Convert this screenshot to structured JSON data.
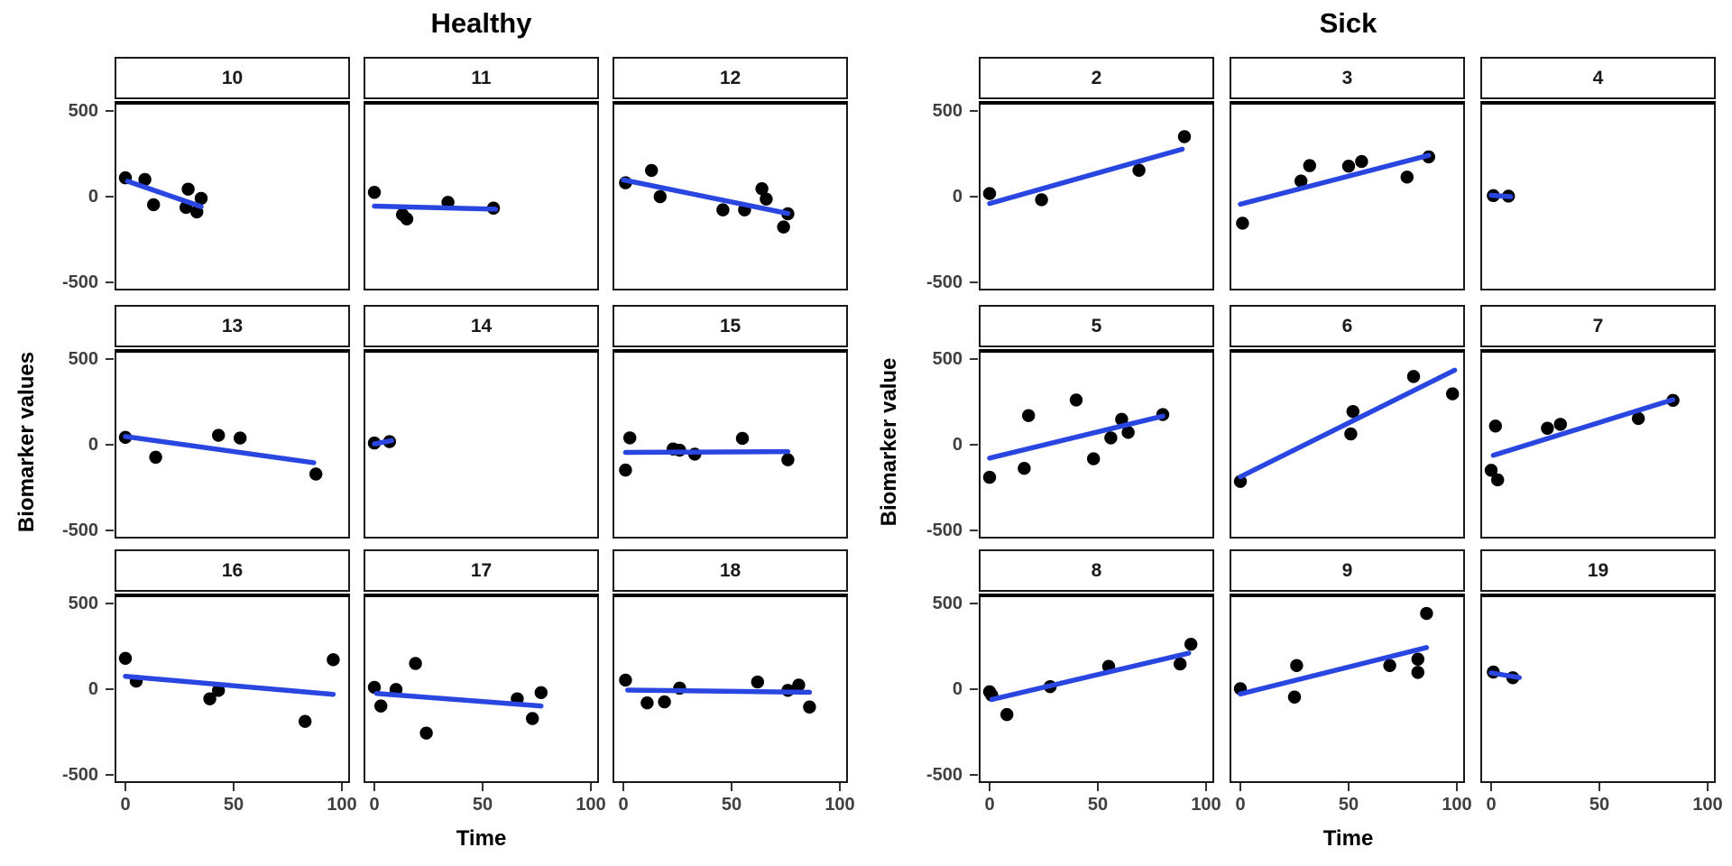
{
  "chart_data": {
    "type": "scatter",
    "description": "Two faceted scatter plots with linear trend lines (ggplot-style), individuals as facets",
    "x_ticks": [
      0,
      50,
      100
    ],
    "y_ticks": [
      500,
      0,
      -500
    ],
    "xlim": [
      -5,
      104
    ],
    "ylim": [
      -560,
      560
    ],
    "grid": false,
    "colors": {
      "trend_line": "#2946E1",
      "point": "#000000",
      "tick_text": "#404040",
      "border": "#1a1a1a"
    },
    "groups": [
      {
        "title": "Healthy",
        "ylabel": "Biomarker values",
        "xlabel": "Time",
        "facets": [
          {
            "label": "10",
            "points": [
              [
                0,
                110
              ],
              [
                9,
                100
              ],
              [
                13,
                -47
              ],
              [
                29,
                44
              ],
              [
                28,
                -63
              ],
              [
                33,
                -89
              ],
              [
                35,
                -10
              ]
            ],
            "line": [
              1,
              90,
              35,
              -58
            ]
          },
          {
            "label": "11",
            "points": [
              [
                0,
                25
              ],
              [
                13,
                -105
              ],
              [
                15,
                -130
              ],
              [
                34,
                -33
              ],
              [
                55,
                -67
              ]
            ],
            "line": [
              0,
              -55,
              56,
              -73
            ]
          },
          {
            "label": "12",
            "points": [
              [
                1,
                81
              ],
              [
                13,
                153
              ],
              [
                17,
                0
              ],
              [
                46,
                -77
              ],
              [
                56,
                -77
              ],
              [
                64,
                46
              ],
              [
                66,
                -14
              ],
              [
                74,
                -177
              ],
              [
                76,
                -100
              ]
            ],
            "line": [
              0,
              98,
              76,
              -98
            ]
          },
          {
            "label": "13",
            "points": [
              [
                0,
                43
              ],
              [
                14,
                -73
              ],
              [
                43,
                55
              ],
              [
                53,
                39
              ],
              [
                88,
                -171
              ]
            ],
            "line": [
              0,
              48,
              87,
              -105
            ]
          },
          {
            "label": "14",
            "points": [
              [
                0,
                10
              ],
              [
                7,
                18
              ]
            ],
            "line": [
              0,
              5,
              8,
              24
            ]
          },
          {
            "label": "15",
            "points": [
              [
                1,
                -148
              ],
              [
                3,
                40
              ],
              [
                23,
                -25
              ],
              [
                26,
                -32
              ],
              [
                33,
                -55
              ],
              [
                55,
                37
              ],
              [
                76,
                -88
              ]
            ],
            "line": [
              1,
              -45,
              76,
              -40
            ]
          },
          {
            "label": "16",
            "points": [
              [
                0,
                180
              ],
              [
                5,
                47
              ],
              [
                39,
                -56
              ],
              [
                43,
                -7
              ],
              [
                83,
                -188
              ],
              [
                96,
                172
              ]
            ],
            "line": [
              0,
              75,
              96,
              -30
            ]
          },
          {
            "label": "17",
            "points": [
              [
                0,
                11
              ],
              [
                3,
                -98
              ],
              [
                10,
                -2
              ],
              [
                19,
                150
              ],
              [
                24,
                -256
              ],
              [
                66,
                -56
              ],
              [
                73,
                -171
              ],
              [
                77,
                -20
              ]
            ],
            "line": [
              1,
              -25,
              77,
              -98
            ]
          },
          {
            "label": "18",
            "points": [
              [
                1,
                53
              ],
              [
                11,
                -80
              ],
              [
                19,
                -74
              ],
              [
                26,
                6
              ],
              [
                62,
                42
              ],
              [
                76,
                -7
              ],
              [
                81,
                24
              ],
              [
                86,
                -104
              ]
            ],
            "line": [
              2,
              -5,
              86,
              -18
            ]
          }
        ]
      },
      {
        "title": "Sick",
        "ylabel": "Biomarker value",
        "xlabel": "Time",
        "facets": [
          {
            "label": "2",
            "points": [
              [
                0,
                18
              ],
              [
                24,
                -18
              ],
              [
                69,
                154
              ],
              [
                90,
                350
              ]
            ],
            "line": [
              0,
              -40,
              89,
              277
            ]
          },
          {
            "label": "3",
            "points": [
              [
                1,
                -155
              ],
              [
                28,
                91
              ],
              [
                32,
                181
              ],
              [
                50,
                178
              ],
              [
                56,
                205
              ],
              [
                77,
                114
              ],
              [
                87,
                232
              ]
            ],
            "line": [
              0,
              -44,
              87,
              241
            ]
          },
          {
            "label": "4",
            "points": [
              [
                1,
                6
              ],
              [
                8,
                3
              ]
            ],
            "line": [
              0,
              8,
              9,
              0
            ]
          },
          {
            "label": "5",
            "points": [
              [
                0,
                -190
              ],
              [
                16,
                -138
              ],
              [
                18,
                170
              ],
              [
                40,
                261
              ],
              [
                48,
                -82
              ],
              [
                56,
                40
              ],
              [
                61,
                148
              ],
              [
                64,
                72
              ],
              [
                80,
                176
              ]
            ],
            "line": [
              0,
              -78,
              80,
              167
            ]
          },
          {
            "label": "6",
            "points": [
              [
                0,
                -214
              ],
              [
                51,
                63
              ],
              [
                52,
                194
              ],
              [
                80,
                398
              ],
              [
                98,
                297
              ]
            ],
            "line": [
              0,
              -187,
              99,
              435
            ]
          },
          {
            "label": "7",
            "points": [
              [
                0,
                -149
              ],
              [
                2,
                109
              ],
              [
                3,
                -205
              ],
              [
                26,
                96
              ],
              [
                32,
                119
              ],
              [
                68,
                153
              ],
              [
                84,
                259
              ]
            ],
            "line": [
              1,
              -62,
              84,
              263
            ]
          },
          {
            "label": "8",
            "points": [
              [
                0,
                -15
              ],
              [
                1,
                -35
              ],
              [
                8,
                -148
              ],
              [
                28,
                15
              ],
              [
                55,
                133
              ],
              [
                88,
                147
              ],
              [
                93,
                262
              ]
            ],
            "line": [
              1,
              -60,
              92,
              210
            ]
          },
          {
            "label": "9",
            "points": [
              [
                0,
                3
              ],
              [
                25,
                -46
              ],
              [
                26,
                138
              ],
              [
                69,
                138
              ],
              [
                82,
                98
              ],
              [
                82,
                175
              ],
              [
                86,
                442
              ]
            ],
            "line": [
              0,
              -28,
              86,
              243
            ]
          },
          {
            "label": "19",
            "points": [
              [
                1,
                100
              ],
              [
                10,
                67
              ]
            ],
            "line": [
              0,
              95,
              13,
              68
            ]
          }
        ]
      }
    ]
  }
}
